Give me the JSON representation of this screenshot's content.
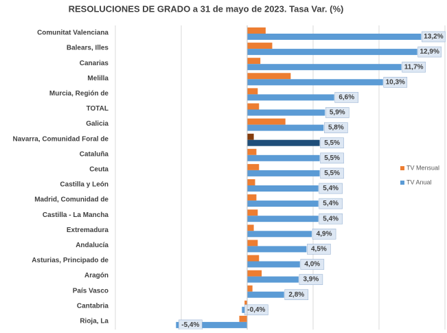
{
  "chart_data": {
    "type": "bar",
    "orientation": "horizontal",
    "title": "RESOLUCIONES DE GRADO a 31 de mayo de 2023. Tasa Var. (%)",
    "categories": [
      "Comunitat Valenciana",
      "Balears, Illes",
      "Canarias",
      "Melilla",
      "Murcia, Región de",
      "TOTAL",
      "Galicia",
      "Navarra, Comunidad Foral de",
      "Cataluña",
      "Ceuta",
      "Castilla y León",
      "Madrid, Comunidad de",
      "Castilla - La Mancha",
      "Extremadura",
      "Andalucía",
      "Asturias, Principado de",
      "Aragón",
      "País Vasco",
      "Cantabria",
      "Rioja, La"
    ],
    "series": [
      {
        "name": "TV Mensual",
        "color": "#ed7d31",
        "highlight": {
          "index": 7,
          "color": "#843c0c"
        },
        "values": [
          1.4,
          1.9,
          1.0,
          3.3,
          0.8,
          0.9,
          2.9,
          0.5,
          0.7,
          0.9,
          0.6,
          0.7,
          0.8,
          0.5,
          0.8,
          0.9,
          1.1,
          0.4,
          -0.2,
          -0.6
        ]
      },
      {
        "name": "TV Anual",
        "color": "#5b9bd5",
        "highlight": {
          "index": 7,
          "color": "#1f4e79"
        },
        "values": [
          13.2,
          12.9,
          11.7,
          10.3,
          6.6,
          5.9,
          5.8,
          5.5,
          5.5,
          5.5,
          5.4,
          5.4,
          5.4,
          4.9,
          4.5,
          4.0,
          3.9,
          2.8,
          -0.4,
          -5.4
        ],
        "value_labels": [
          "13,2%",
          "12,9%",
          "11,7%",
          "10,3%",
          "6,6%",
          "5,9%",
          "5,8%",
          "5,5%",
          "5,5%",
          "5,5%",
          "5,4%",
          "5,4%",
          "5,4%",
          "4,9%",
          "4,5%",
          "4,0%",
          "3,9%",
          "2,8%",
          "-0,4%",
          "-5,4%"
        ]
      }
    ],
    "xlim": [
      -10,
      15
    ],
    "xticks": [
      -10,
      -5,
      0,
      5,
      10,
      15
    ],
    "grid": true,
    "legend": "right"
  }
}
